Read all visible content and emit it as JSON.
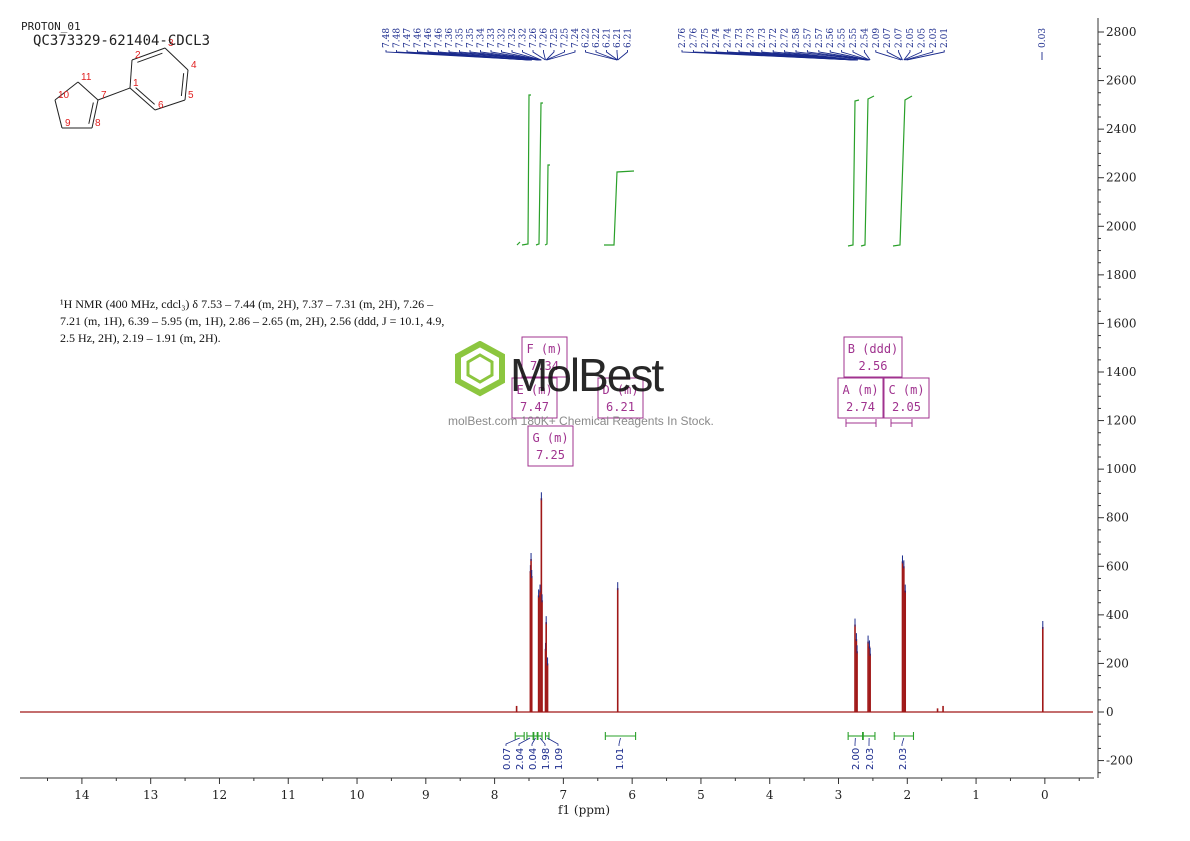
{
  "header": {
    "sample": "PROTON_01",
    "code": "QC373329-621404-CDCL3"
  },
  "molecule": {
    "atom_labels": [
      "1",
      "2",
      "3",
      "4",
      "5",
      "6",
      "7",
      "8",
      "9",
      "10",
      "11"
    ],
    "label_color": "#e02020"
  },
  "nmr_text": {
    "l1": "¹H NMR (400 MHz, cdcl₃) δ 7.53 – 7.44 (m, 2H), 7.37 – 7.31 (m, 2H), 7.26 –",
    "l2": "7.21 (m, 1H), 6.39 – 5.95 (m, 1H), 2.86 – 2.65 (m, 2H), 2.56 (ddd, J = 10.1, 4.9,",
    "l3": "2.5 Hz, 2H), 2.19 – 1.91 (m, 2H)."
  },
  "watermark": {
    "brand": "MolBest",
    "url": "molBest.com 180K+ Chemical Reagents In Stock.",
    "logo_color": "#8cc63f"
  },
  "colors": {
    "spectrum": "#a01818",
    "integral": "#2aa02a",
    "peak_label": "#1a2a8c",
    "multiplet": "#a0338f",
    "axis": "#333333"
  },
  "chart_data": {
    "type": "line",
    "xlabel": "f1 (ppm)",
    "ylabel": "",
    "xlim": [
      14.9,
      -0.7
    ],
    "ylim": [
      -270,
      2880
    ],
    "x_ticks": [
      14,
      13,
      12,
      11,
      10,
      9,
      8,
      7,
      6,
      5,
      4,
      3,
      2,
      1,
      0
    ],
    "y_ticks": [
      -200,
      0,
      200,
      400,
      600,
      800,
      1000,
      1200,
      1400,
      1600,
      1800,
      2000,
      2200,
      2400,
      2600,
      2800
    ],
    "peaks": [
      {
        "ppm": 7.48,
        "height": 580
      },
      {
        "ppm": 7.47,
        "height": 630
      },
      {
        "ppm": 7.46,
        "height": 560
      },
      {
        "ppm": 7.36,
        "height": 480
      },
      {
        "ppm": 7.34,
        "height": 500
      },
      {
        "ppm": 7.32,
        "height": 880
      },
      {
        "ppm": 7.31,
        "height": 460
      },
      {
        "ppm": 7.26,
        "height": 260
      },
      {
        "ppm": 7.25,
        "height": 370
      },
      {
        "ppm": 7.23,
        "height": 200
      },
      {
        "ppm": 6.21,
        "height": 510
      },
      {
        "ppm": 2.76,
        "height": 360
      },
      {
        "ppm": 2.74,
        "height": 300
      },
      {
        "ppm": 2.73,
        "height": 250
      },
      {
        "ppm": 2.57,
        "height": 290
      },
      {
        "ppm": 2.55,
        "height": 270
      },
      {
        "ppm": 2.54,
        "height": 240
      },
      {
        "ppm": 2.07,
        "height": 620
      },
      {
        "ppm": 2.05,
        "height": 600
      },
      {
        "ppm": 2.03,
        "height": 500
      },
      {
        "ppm": 7.68,
        "height": 25
      },
      {
        "ppm": 1.48,
        "height": 25
      },
      {
        "ppm": 1.56,
        "height": 15
      },
      {
        "ppm": 0.03,
        "height": 350
      }
    ],
    "peak_labels_group1": [
      "7.48",
      "7.48",
      "7.47",
      "7.46",
      "7.46",
      "7.46",
      "7.36",
      "7.35",
      "7.35",
      "7.34",
      "7.33",
      "7.32",
      "7.32",
      "7.32",
      "7.26",
      "7.26",
      "7.25",
      "7.25",
      "7.24",
      "6.22",
      "6.22",
      "6.21",
      "6.21",
      "6.21"
    ],
    "peak_labels_group2": [
      "2.76",
      "2.76",
      "2.75",
      "2.74",
      "2.74",
      "2.73",
      "2.73",
      "2.73",
      "2.72",
      "2.72",
      "2.58",
      "2.57",
      "2.57",
      "2.56",
      "2.55",
      "2.55",
      "2.54",
      "2.09",
      "2.07",
      "2.07",
      "2.05",
      "2.05",
      "2.03",
      "2.01"
    ],
    "peak_labels_group3": [
      "0.03"
    ],
    "integrals": [
      {
        "from": 7.7,
        "to": 7.57,
        "value": "0.07"
      },
      {
        "from": 7.53,
        "to": 7.44,
        "value": "2.04"
      },
      {
        "from": 7.43,
        "to": 7.38,
        "value": "0.04"
      },
      {
        "from": 7.37,
        "to": 7.31,
        "value": "1.98"
      },
      {
        "from": 7.26,
        "to": 7.21,
        "value": "1.09"
      },
      {
        "from": 6.39,
        "to": 5.95,
        "value": "1.01"
      },
      {
        "from": 2.86,
        "to": 2.65,
        "value": "2.00"
      },
      {
        "from": 2.64,
        "to": 2.47,
        "value": "2.03"
      },
      {
        "from": 2.19,
        "to": 1.91,
        "value": "2.03"
      }
    ],
    "multiplets": [
      {
        "label": "F (m)",
        "value": "7.34"
      },
      {
        "label": "E (m)",
        "value": "7.47"
      },
      {
        "label": "D (m)",
        "value": "6.21"
      },
      {
        "label": "G (m)",
        "value": "7.25"
      },
      {
        "label": "B (ddd)",
        "value": "2.56"
      },
      {
        "label": "A (m)",
        "value": "2.74"
      },
      {
        "label": "C (m)",
        "value": "2.05"
      }
    ]
  }
}
